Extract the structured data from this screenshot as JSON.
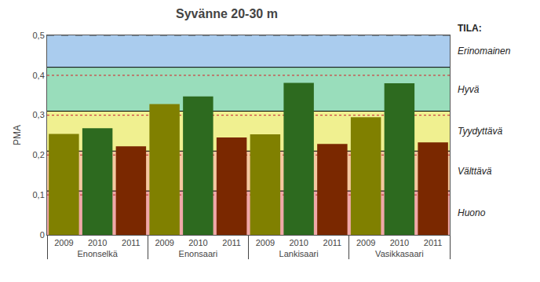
{
  "chart_data": {
    "type": "bar",
    "title": "Syvänne 20-30 m",
    "ylabel": "PMA",
    "categories": [
      "Enonselkä",
      "Enonsaari",
      "Lankisaari",
      "Vasikkasaari"
    ],
    "series": [
      {
        "name": "2009",
        "color": "#808000",
        "values": [
          0.253,
          0.328,
          0.252,
          0.295
        ]
      },
      {
        "name": "2010",
        "color": "#2d6a1f",
        "values": [
          0.267,
          0.347,
          0.381,
          0.38
        ]
      },
      {
        "name": "2011",
        "color": "#7a2800",
        "values": [
          0.222,
          0.244,
          0.228,
          0.232
        ]
      }
    ],
    "ylim": [
      0,
      0.5
    ],
    "yticks": [
      0,
      {
        "value": 0.1,
        "label": "0,1"
      },
      {
        "value": 0.2,
        "label": "0,2"
      },
      {
        "value": 0.3,
        "label": "0,3"
      },
      {
        "value": 0.4,
        "label": "0,4"
      },
      {
        "value": 0.5,
        "label": "0,5"
      }
    ],
    "grid": false,
    "bands": [
      {
        "label": "Erinomainen",
        "ymin": 0.42,
        "ymax": 0.5,
        "color": "#aaccee"
      },
      {
        "label": "Hyvä",
        "ymin": 0.31,
        "ymax": 0.42,
        "color": "#99ddbb"
      },
      {
        "label": "Tyydyttävä",
        "ymin": 0.21,
        "ymax": 0.31,
        "color": "#f0f090"
      },
      {
        "label": "Välttävä",
        "ymin": 0.11,
        "ymax": 0.21,
        "color": "#f5c8a0"
      },
      {
        "label": "Huono",
        "ymin": 0.0,
        "ymax": 0.11,
        "color": "#f0a8a8"
      }
    ],
    "reference_lines": [
      {
        "value": 0.42,
        "line_style": "solid",
        "color": "#000000"
      },
      {
        "value": 0.31,
        "line_style": "solid",
        "color": "#000000"
      },
      {
        "value": 0.21,
        "line_style": "solid",
        "color": "#000000"
      },
      {
        "value": 0.11,
        "line_style": "solid",
        "color": "#000000"
      },
      {
        "value": 0.4,
        "line_style": "dotted",
        "color": "#cc4444"
      },
      {
        "value": 0.3,
        "line_style": "dotted",
        "color": "#cc4444"
      },
      {
        "value": 0.2,
        "line_style": "dotted",
        "color": "#cc4444"
      },
      {
        "value": 0.1,
        "line_style": "dotted",
        "color": "#cc4444"
      },
      {
        "value": 0.5,
        "line_style": "dashed",
        "color": "#444444"
      }
    ],
    "annotations": [
      "TILA:"
    ]
  }
}
